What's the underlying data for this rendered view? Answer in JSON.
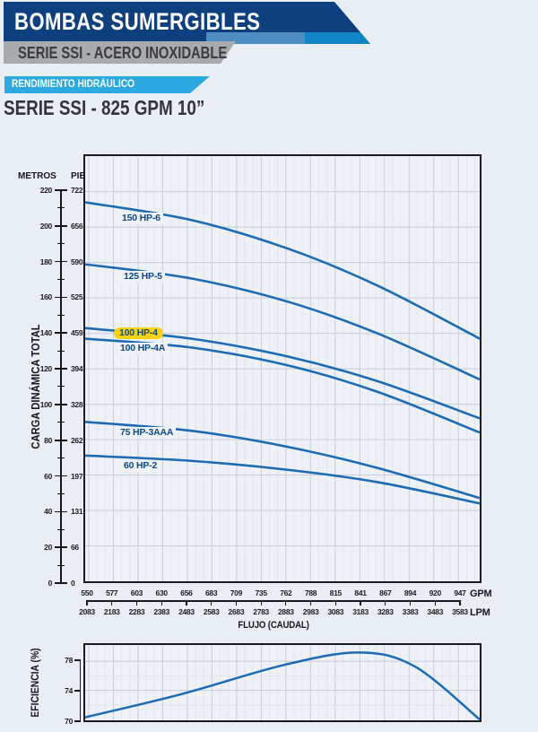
{
  "header": {
    "title": "BOMBAS SUMERGIBLES",
    "subtitle": "SERIE SSI - ACERO INOXIDABLE",
    "banner": "RENDIMIENTO HIDRÁULICO",
    "product_title": "SERIE SSI -  825 GPM 10”"
  },
  "axes": {
    "y_left_unit": "METROS",
    "y_right_unit": "PIES",
    "y_label": "CARGA DINÁMICA TOTAL",
    "x_label": "FLUJO (CAUDAL)",
    "x_unit_top": "GPM",
    "x_unit_bottom": "LPM",
    "eff_label": "EFICIENCIA (%)"
  },
  "colors": {
    "navy": "#0e3f7e",
    "steel_band": "#4f8cc1",
    "bright_band": "#0f85c4",
    "gray_band": "#a8aaad",
    "light_blue_banner": "#2ba9e0",
    "curve_blue": "#1a6cb4",
    "highlight_yellow": "#f8d30e",
    "grid_major": "#c7cdda",
    "grid_minor": "#dfe3ed",
    "plot_bg": "#eef1f6"
  },
  "chart_data": [
    {
      "type": "line",
      "id": "head-capacity",
      "xlabel": "FLUJO (CAUDAL)",
      "ylabel_left": "CARGA DINÁMICA TOTAL (METROS)",
      "ylabel_right": "PIES",
      "x_ticks_gpm": [
        550,
        577,
        603,
        630,
        656,
        683,
        709,
        735,
        762,
        788,
        815,
        841,
        867,
        894,
        920,
        947
      ],
      "x_ticks_lpm": [
        2083,
        2183,
        2283,
        2383,
        2483,
        2583,
        2683,
        2783,
        2883,
        2983,
        3083,
        3183,
        3283,
        3383,
        3483,
        3583
      ],
      "y_ticks_m": [
        220,
        200,
        180,
        160,
        140,
        120,
        100,
        80,
        60,
        40,
        20,
        0
      ],
      "y_ticks_ft": [
        722,
        656,
        590,
        525,
        459,
        394,
        328,
        262,
        197,
        131,
        66,
        0
      ],
      "xlim_gpm": [
        546,
        970
      ],
      "ylim_m": [
        0,
        240
      ],
      "grid": true,
      "highlighted_series": "100 HP-4",
      "series": [
        {
          "name": "150 HP-6",
          "highlight": false,
          "points": [
            [
              546,
              214
            ],
            [
              660,
              204
            ],
            [
              763,
              188
            ],
            [
              860,
              167
            ],
            [
              970,
              137
            ]
          ]
        },
        {
          "name": "125 HP-5",
          "highlight": false,
          "points": [
            [
              546,
              179
            ],
            [
              660,
              171
            ],
            [
              763,
              158
            ],
            [
              860,
              140
            ],
            [
              970,
              114
            ]
          ]
        },
        {
          "name": "100 HP-4",
          "highlight": true,
          "points": [
            [
              546,
              143
            ],
            [
              660,
              137
            ],
            [
              763,
              127
            ],
            [
              860,
              113
            ],
            [
              970,
              92
            ]
          ]
        },
        {
          "name": "100 HP-4A",
          "highlight": false,
          "points": [
            [
              546,
              137
            ],
            [
              660,
              132
            ],
            [
              763,
              122
            ],
            [
              860,
              107
            ],
            [
              970,
              84
            ]
          ]
        },
        {
          "name": "75 HP-3AAA",
          "highlight": false,
          "points": [
            [
              546,
              90
            ],
            [
              660,
              85
            ],
            [
              763,
              76
            ],
            [
              860,
              64
            ],
            [
              970,
              47
            ]
          ]
        },
        {
          "name": "60 HP-2",
          "highlight": false,
          "points": [
            [
              546,
              71
            ],
            [
              660,
              68
            ],
            [
              763,
              63
            ],
            [
              860,
              56
            ],
            [
              970,
              44
            ]
          ]
        }
      ]
    },
    {
      "type": "line",
      "id": "efficiency",
      "ylabel": "EFICIENCIA (%)",
      "y_ticks": [
        78,
        74,
        70
      ],
      "ylim": [
        70,
        80
      ],
      "xlim_gpm": [
        546,
        970
      ],
      "grid": true,
      "series": [
        {
          "name": "eficiencia",
          "points": [
            [
              546,
              70.3
            ],
            [
              650,
              73.5
            ],
            [
              760,
              77.5
            ],
            [
              840,
              79.2
            ],
            [
              900,
              77.3
            ],
            [
              970,
              70.0
            ]
          ]
        }
      ]
    }
  ]
}
